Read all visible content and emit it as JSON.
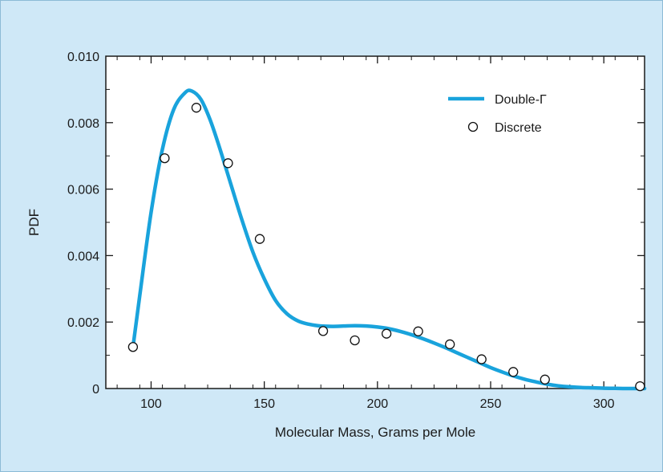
{
  "chart_data": {
    "type": "line",
    "title": "",
    "xlabel": "Molecular Mass, Grams per Mole",
    "ylabel": "PDF",
    "xlim": [
      80,
      318
    ],
    "ylim": [
      0,
      0.01
    ],
    "x_ticks": [
      100,
      150,
      200,
      250,
      300
    ],
    "x_tick_labels": [
      "100",
      "150",
      "200",
      "250",
      "300"
    ],
    "y_ticks": [
      0,
      0.002,
      0.004,
      0.006,
      0.008,
      0.01
    ],
    "y_tick_labels": [
      "0",
      "0.002",
      "0.004",
      "0.006",
      "0.008",
      "0.010"
    ],
    "legend_position": "top-right",
    "grid": false,
    "colors": {
      "curve": "#19a3dc",
      "marker_edge": "#111111",
      "marker_fill": "#ffffff",
      "background": "#cfe8f7"
    },
    "series": [
      {
        "name": "Double-Γ",
        "kind": "line",
        "x": [
          92,
          95,
          100,
          105,
          110,
          115,
          118,
          122,
          126,
          130,
          135,
          140,
          145,
          150,
          155,
          160,
          165,
          170,
          175,
          180,
          185,
          190,
          195,
          200,
          205,
          210,
          215,
          220,
          225,
          230,
          235,
          240,
          245,
          250,
          255,
          260,
          265,
          270,
          275,
          280,
          285,
          290,
          295,
          300,
          305,
          310,
          318
        ],
        "y": [
          0.00125,
          0.0028,
          0.0053,
          0.0072,
          0.0084,
          0.0089,
          0.00895,
          0.0087,
          0.0081,
          0.0073,
          0.0062,
          0.0051,
          0.0041,
          0.0033,
          0.00265,
          0.00225,
          0.00203,
          0.00193,
          0.00188,
          0.00187,
          0.00188,
          0.00189,
          0.00188,
          0.00185,
          0.0018,
          0.00172,
          0.00162,
          0.0015,
          0.00137,
          0.00123,
          0.00108,
          0.00093,
          0.00078,
          0.00063,
          0.0005,
          0.00038,
          0.00028,
          0.0002,
          0.00013,
          8e-05,
          5e-05,
          3e-05,
          2e-05,
          1e-05,
          5e-06,
          0.0,
          0.0
        ]
      },
      {
        "name": "Discrete",
        "kind": "scatter",
        "x": [
          92,
          106,
          120,
          134,
          148,
          176,
          190,
          204,
          218,
          232,
          246,
          260,
          274,
          316
        ],
        "y": [
          0.00125,
          0.00693,
          0.00845,
          0.00678,
          0.0045,
          0.00173,
          0.00145,
          0.00165,
          0.00172,
          0.00133,
          0.00088,
          0.0005,
          0.00027,
          7e-05
        ]
      }
    ]
  }
}
